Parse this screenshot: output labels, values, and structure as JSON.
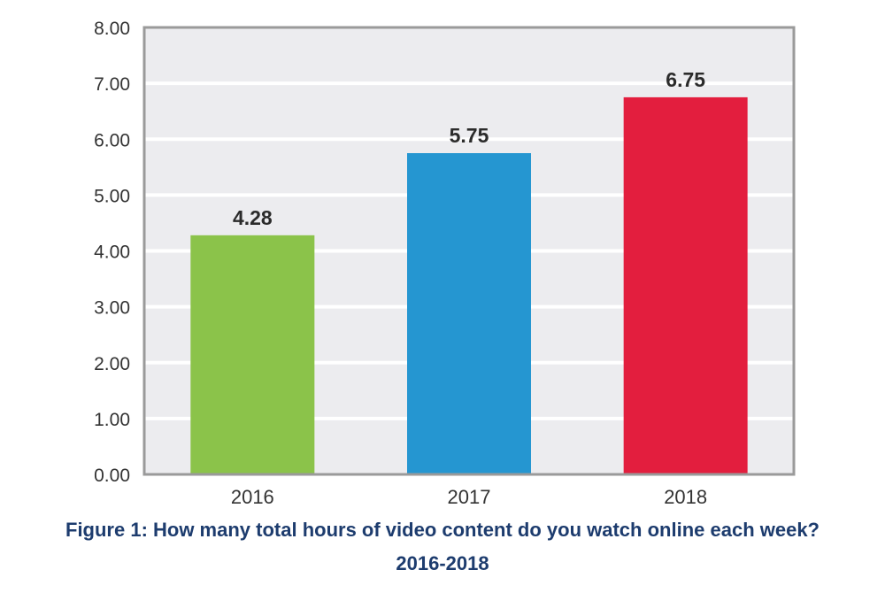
{
  "chart_data": {
    "type": "bar",
    "categories": [
      "2016",
      "2017",
      "2018"
    ],
    "values": [
      4.28,
      5.75,
      6.75
    ],
    "value_labels": [
      "4.28",
      "5.75",
      "6.75"
    ],
    "title": "Figure 1: How many total hours of video content do you watch online each week?",
    "subtitle": "2016-2018",
    "xlabel": "",
    "ylabel": "",
    "ylim": [
      0,
      8
    ],
    "yticks": [
      "0.00",
      "1.00",
      "2.00",
      "3.00",
      "4.00",
      "5.00",
      "6.00",
      "7.00",
      "8.00"
    ],
    "grid": true,
    "legend": "none",
    "colors": [
      "#8bc34a",
      "#2596d1",
      "#e31e3e"
    ],
    "plot_background": "#ececef",
    "frame_color": "#9a9a9a",
    "grid_color": "#ffffff",
    "caption_color": "#1d3c6e"
  }
}
